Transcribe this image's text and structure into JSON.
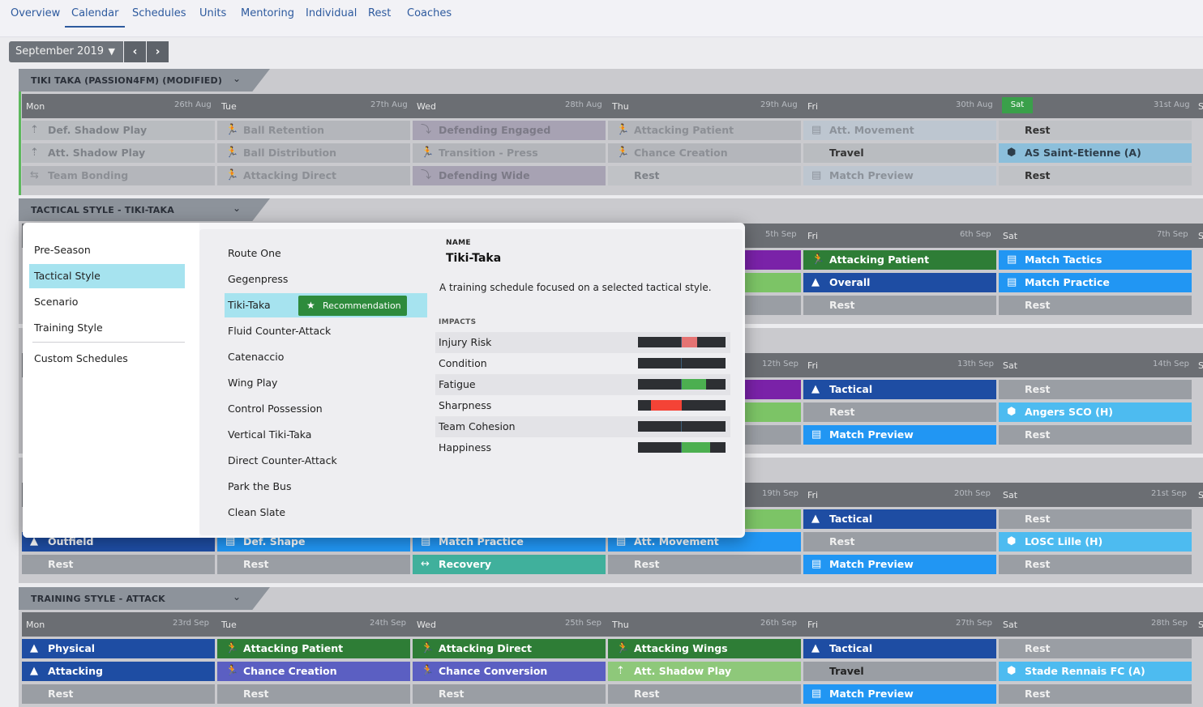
{
  "nav": {
    "tabs": [
      "Overview",
      "Calendar",
      "Schedules",
      "Units",
      "Mentoring",
      "Individual",
      "Rest",
      "Coaches"
    ],
    "active": "Calendar"
  },
  "month": {
    "label": "September 2019",
    "prev": "‹",
    "next": "›"
  },
  "days": [
    "Mon",
    "Tue",
    "Wed",
    "Thu",
    "Fri",
    "Sat",
    "S"
  ],
  "sections": {
    "s1": {
      "title": "TIKI TAKA (PASSION4FM) (MODIFIED)",
      "dates": [
        "26th Aug",
        "27th Aug",
        "28th Aug",
        "29th Aug",
        "30th Aug",
        "31st Aug"
      ],
      "sat_badge": "Sat",
      "rows": [
        [
          "Def. Shadow Play",
          "Ball Retention",
          "Defending Engaged",
          "Attacking Patient",
          "Att. Movement",
          "Rest"
        ],
        [
          "Att. Shadow Play",
          "Ball Distribution",
          "Transition - Press",
          "Chance Creation",
          "Travel",
          "AS Saint-Etienne (A)"
        ],
        [
          "Team Bonding",
          "Attacking Direct",
          "Defending Wide",
          "Rest",
          "Match Preview",
          "Rest"
        ]
      ]
    },
    "s2": {
      "title": "TACTICAL STYLE - TIKI-TAKA",
      "dates": [
        "5th Sep",
        "6th Sep",
        "7th Sep"
      ],
      "rows": [
        [
          "Attacking Patient",
          "Match Tactics"
        ],
        [
          "Overall",
          "Match Practice"
        ],
        [
          "Rest",
          "Rest"
        ]
      ]
    },
    "s3": {
      "dates": [
        "12th Sep",
        "13th Sep",
        "14th Sep"
      ],
      "rows": [
        [
          "Tactical",
          "Rest"
        ],
        [
          "Rest",
          "Angers SCO (H)"
        ],
        [
          "Match Preview",
          "Rest"
        ]
      ]
    },
    "s4": {
      "dates": [
        "19th Sep",
        "20th Sep",
        "21st Sep"
      ],
      "rows": [
        [
          "Tactical",
          "Rest"
        ],
        [
          "Outfield",
          "Def. Shape",
          "Match Practice",
          "Att. Movement",
          "Rest",
          "LOSC Lille (H)"
        ],
        [
          "Rest",
          "Rest",
          "Recovery",
          "Rest",
          "Match Preview",
          "Rest"
        ]
      ]
    },
    "s5": {
      "title": "TRAINING STYLE - ATTACK",
      "dates": [
        "23rd Sep",
        "24th Sep",
        "25th Sep",
        "26th Sep",
        "27th Sep",
        "28th Sep"
      ],
      "rows": [
        [
          "Physical",
          "Attacking Patient",
          "Attacking Direct",
          "Attacking Wings",
          "Tactical",
          "Rest"
        ],
        [
          "Attacking",
          "Chance Creation",
          "Chance Conversion",
          "Att. Shadow Play",
          "Travel",
          "Stade Rennais FC (A)"
        ],
        [
          "Rest",
          "Rest",
          "Rest",
          "Rest",
          "Match Preview",
          "Rest"
        ]
      ]
    }
  },
  "popup": {
    "categories": [
      "Pre-Season",
      "Tactical Style",
      "Scenario",
      "Training Style",
      "Custom Schedules"
    ],
    "selected_category": "Tactical Style",
    "styles": [
      "Route One",
      "Gegenpress",
      "Tiki-Taka",
      "Fluid Counter-Attack",
      "Catenaccio",
      "Wing Play",
      "Control Possession",
      "Vertical Tiki-Taka",
      "Direct Counter-Attack",
      "Park the Bus",
      "Clean Slate"
    ],
    "selected_style": "Tiki-Taka",
    "recommendation": "Recommendation",
    "name_label": "NAME",
    "name": "Tiki-Taka",
    "description": "A training schedule focused on a selected tactical style.",
    "impacts_label": "IMPACTS",
    "impacts": [
      {
        "name": "Injury Risk",
        "direction": "up",
        "amount": 0.35,
        "color": "#e57373"
      },
      {
        "name": "Condition",
        "direction": "none",
        "amount": 0,
        "color": "#2d2f33"
      },
      {
        "name": "Fatigue",
        "direction": "up",
        "amount": 0.55,
        "color": "#4caf50"
      },
      {
        "name": "Sharpness",
        "direction": "down",
        "amount": 0.7,
        "color": "#f44336"
      },
      {
        "name": "Team Cohesion",
        "direction": "none",
        "amount": 0,
        "color": "#2d2f33"
      },
      {
        "name": "Happiness",
        "direction": "up",
        "amount": 0.65,
        "color": "#4caf50"
      }
    ]
  }
}
